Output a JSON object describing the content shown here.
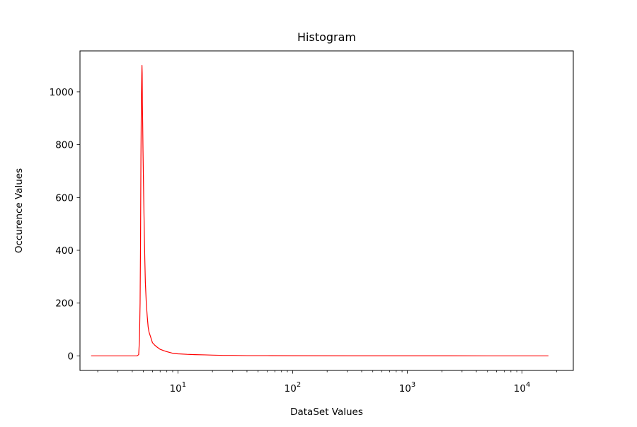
{
  "chart_data": {
    "type": "line",
    "title": "Histogram",
    "xlabel": "DataSet Values",
    "ylabel": "Occurence Values",
    "xscale": "log",
    "xlim": [
      1.4,
      28000
    ],
    "ylim": [
      -55,
      1155
    ],
    "grid": false,
    "legend": "none",
    "x_ticks": [
      {
        "value": 10,
        "base": "10",
        "exp": "1"
      },
      {
        "value": 100,
        "base": "10",
        "exp": "2"
      },
      {
        "value": 1000,
        "base": "10",
        "exp": "3"
      },
      {
        "value": 10000,
        "base": "10",
        "exp": "4"
      }
    ],
    "y_ticks": [
      0,
      200,
      400,
      600,
      800,
      1000
    ],
    "series": [
      {
        "color": "#ff0000",
        "points": [
          [
            1.75,
            0
          ],
          [
            3.0,
            0
          ],
          [
            4.4,
            0
          ],
          [
            4.55,
            5
          ],
          [
            4.62,
            60
          ],
          [
            4.68,
            200
          ],
          [
            4.72,
            420
          ],
          [
            4.76,
            750
          ],
          [
            4.8,
            960
          ],
          [
            4.84,
            1060
          ],
          [
            4.86,
            1100
          ],
          [
            4.88,
            1070
          ],
          [
            4.9,
            960
          ],
          [
            4.93,
            880
          ],
          [
            4.96,
            780
          ],
          [
            5.0,
            680
          ],
          [
            5.05,
            560
          ],
          [
            5.1,
            450
          ],
          [
            5.15,
            360
          ],
          [
            5.2,
            280
          ],
          [
            5.3,
            200
          ],
          [
            5.4,
            150
          ],
          [
            5.5,
            110
          ],
          [
            5.6,
            90
          ],
          [
            5.8,
            70
          ],
          [
            6.0,
            50
          ],
          [
            6.3,
            40
          ],
          [
            6.6,
            33
          ],
          [
            7.0,
            25
          ],
          [
            7.5,
            20
          ],
          [
            8.0,
            16
          ],
          [
            8.5,
            13
          ],
          [
            9.0,
            10
          ],
          [
            10,
            8
          ],
          [
            12,
            6
          ],
          [
            14,
            5
          ],
          [
            17,
            4
          ],
          [
            20,
            3
          ],
          [
            25,
            2
          ],
          [
            30,
            2
          ],
          [
            40,
            1
          ],
          [
            60,
            1
          ],
          [
            100,
            0.5
          ],
          [
            300,
            0.3
          ],
          [
            1000,
            0.2
          ],
          [
            5000,
            0.1
          ],
          [
            17000,
            0
          ]
        ]
      }
    ]
  }
}
